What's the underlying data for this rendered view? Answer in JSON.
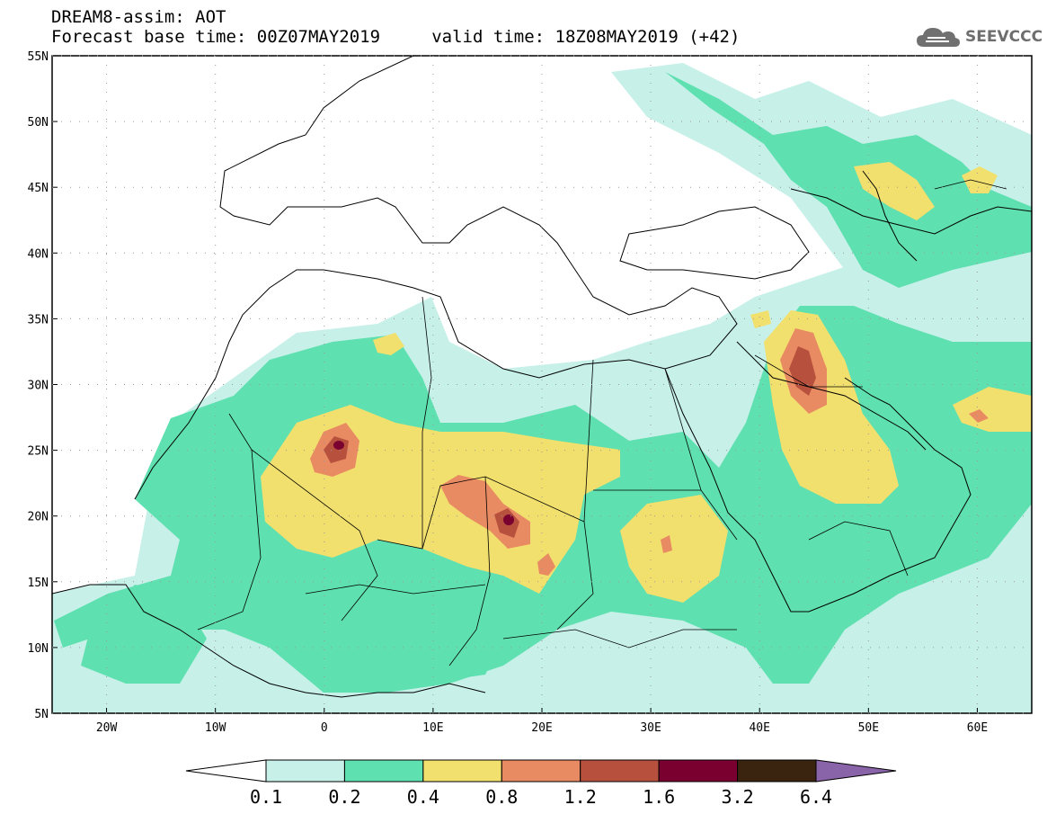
{
  "title_line1": "DREAM8-assim: AOT",
  "title_line2": "Forecast base time: 00Z07MAY2019     valid time: 18Z08MAY2019 (+42)",
  "logo_text": "SEEVCCC",
  "map": {
    "lon_range": [
      -25,
      65
    ],
    "lat_range": [
      5,
      55
    ],
    "x_ticks": [
      {
        "lon": -20,
        "label": "20W"
      },
      {
        "lon": -10,
        "label": "10W"
      },
      {
        "lon": 0,
        "label": "0"
      },
      {
        "lon": 10,
        "label": "10E"
      },
      {
        "lon": 20,
        "label": "20E"
      },
      {
        "lon": 30,
        "label": "30E"
      },
      {
        "lon": 40,
        "label": "40E"
      },
      {
        "lon": 50,
        "label": "50E"
      },
      {
        "lon": 60,
        "label": "60E"
      }
    ],
    "y_ticks": [
      {
        "lat": 55,
        "label": "55N"
      },
      {
        "lat": 50,
        "label": "50N"
      },
      {
        "lat": 45,
        "label": "45N"
      },
      {
        "lat": 40,
        "label": "40N"
      },
      {
        "lat": 35,
        "label": "35N"
      },
      {
        "lat": 30,
        "label": "30N"
      },
      {
        "lat": 25,
        "label": "25N"
      },
      {
        "lat": 20,
        "label": "20N"
      },
      {
        "lat": 15,
        "label": "15N"
      },
      {
        "lat": 10,
        "label": "10N"
      },
      {
        "lat": 5,
        "label": "5N"
      }
    ]
  },
  "colorbar": {
    "colors": [
      "#c6f0e8",
      "#5fe0b0",
      "#f2e06e",
      "#e88b62",
      "#b8503e",
      "#7a0030",
      "#3a2410",
      "#8a64a8"
    ],
    "labels": [
      "0.1",
      "0.2",
      "0.4",
      "0.8",
      "1.2",
      "1.6",
      "3.2",
      "6.4"
    ]
  }
}
